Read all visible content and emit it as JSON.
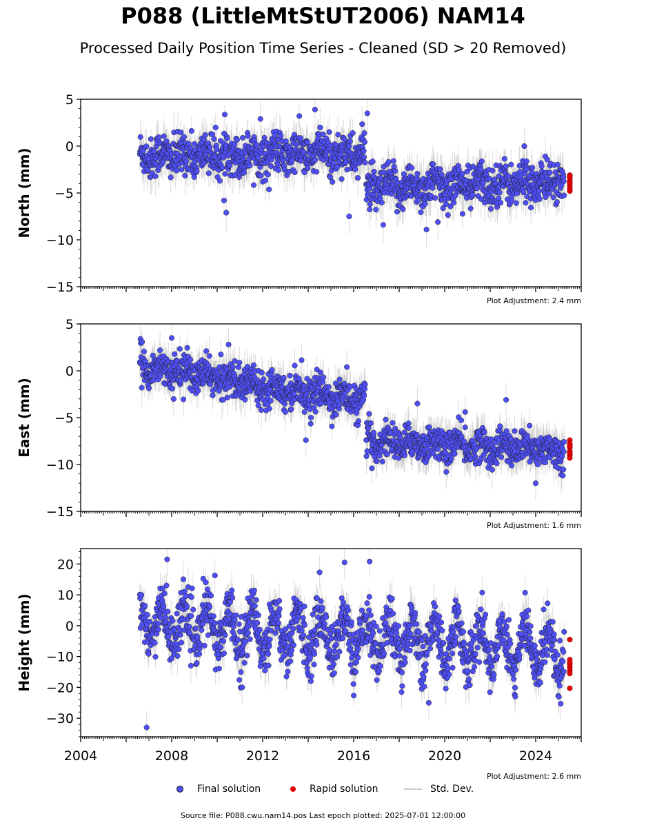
{
  "title": "P088 (LittleMtStUT2006) NAM14",
  "subtitle": "Processed Daily Position Time Series - Cleaned (SD > 20 Removed)",
  "legend": {
    "final": "Final solution",
    "rapid": "Rapid solution",
    "std": "Std. Dev."
  },
  "source": "Source file: P088.cwu.nam14.pos  Last epoch plotted: 2025-07-01 12:00:00",
  "colors": {
    "final_fill": "#4f4ff7",
    "final_edge": "#1a1a1a",
    "rapid": "#e00000",
    "std_dev": "#bdbdbd",
    "axis": "#000000"
  },
  "chart_data": [
    {
      "type": "scatter",
      "name": "north",
      "ylabel": "North (mm)",
      "ylim": [
        -15,
        5
      ],
      "yticks": [
        5,
        0,
        -5,
        -10,
        -15
      ],
      "xlim": [
        2004,
        2026
      ],
      "xticks": [
        2004,
        2008,
        2012,
        2016,
        2020,
        2024
      ],
      "show_xtick_labels": false,
      "adjustment": "Plot Adjustment: 2.4 mm",
      "segments": [
        {
          "x0": 2006.6,
          "x1": 2016.5,
          "y0": -1.0,
          "y1": -0.8
        },
        {
          "x0": 2016.55,
          "x1": 2025.25,
          "y0": -4.5,
          "y1": -3.8
        }
      ],
      "scatter_sd": 1.1,
      "annual_amp": 0.5,
      "outliers": [
        [
          2014.3,
          3.9
        ],
        [
          2011.9,
          2.9
        ],
        [
          2010.3,
          -5.8
        ],
        [
          2010.4,
          -7.1
        ],
        [
          2015.8,
          -7.5
        ],
        [
          2019.2,
          -8.9
        ],
        [
          2017.3,
          -8.4
        ],
        [
          2019.7,
          -8.1
        ],
        [
          2023.5,
          0.0
        ],
        [
          2016.6,
          3.5
        ]
      ],
      "rapid": {
        "x": 2025.5,
        "values": [
          -3.1,
          -3.4,
          -3.7,
          -4.0,
          -4.3,
          -4.6,
          -4.8,
          -3.9,
          -3.2
        ]
      },
      "err_mean": 1.6
    },
    {
      "type": "scatter",
      "name": "east",
      "ylabel": "East (mm)",
      "ylim": [
        -15,
        5
      ],
      "yticks": [
        5,
        0,
        -5,
        -10,
        -15
      ],
      "xlim": [
        2004,
        2026
      ],
      "xticks": [
        2004,
        2008,
        2012,
        2016,
        2020,
        2024
      ],
      "show_xtick_labels": false,
      "adjustment": "Plot Adjustment: 1.6 mm",
      "segments": [
        {
          "x0": 2006.6,
          "x1": 2016.5,
          "y0": 0.6,
          "y1": -3.3
        },
        {
          "x0": 2016.55,
          "x1": 2025.25,
          "y0": -7.5,
          "y1": -8.5
        }
      ],
      "scatter_sd": 0.9,
      "annual_amp": 0.5,
      "outliers": [
        [
          2008.0,
          3.5
        ],
        [
          2010.5,
          2.8
        ],
        [
          2015.7,
          0.4
        ],
        [
          2013.9,
          -7.4
        ],
        [
          2022.7,
          -3.1
        ],
        [
          2018.8,
          -3.5
        ],
        [
          2024.0,
          -12.0
        ],
        [
          2016.8,
          -10.4
        ],
        [
          2020.9,
          -4.4
        ]
      ],
      "rapid": {
        "x": 2025.5,
        "values": [
          -7.4,
          -7.8,
          -8.2,
          -8.6,
          -9.0,
          -9.3,
          -8.0,
          -8.8
        ]
      },
      "err_mean": 1.5
    },
    {
      "type": "scatter",
      "name": "height",
      "ylabel": "Height (mm)",
      "ylim": [
        -36,
        25
      ],
      "yticks": [
        20,
        10,
        0,
        -10,
        -20,
        -30
      ],
      "xlim": [
        2004,
        2026
      ],
      "xticks": [
        2004,
        2008,
        2012,
        2016,
        2020,
        2024
      ],
      "show_xtick_labels": true,
      "adjustment": "Plot Adjustment: 2.6 mm",
      "segments": [
        {
          "x0": 2006.6,
          "x1": 2025.25,
          "y0": 1.0,
          "y1": -8.0
        }
      ],
      "scatter_sd": 4.2,
      "annual_amp": 6.5,
      "outliers": [
        [
          2006.9,
          -33.0
        ],
        [
          2007.8,
          21.5
        ],
        [
          2015.6,
          20.5
        ],
        [
          2016.7,
          20.8
        ],
        [
          2009.9,
          16.3
        ],
        [
          2019.3,
          -25.0
        ],
        [
          2023.1,
          -23.0
        ],
        [
          2025.1,
          -25.3
        ],
        [
          2011.1,
          -20.0
        ]
      ],
      "rapid": {
        "x": 2025.5,
        "values": [
          -4.5,
          -11.0,
          -12.5,
          -13.5,
          -14.5,
          -15.5,
          -20.3,
          -12.0
        ]
      },
      "err_mean": 4.5
    }
  ]
}
